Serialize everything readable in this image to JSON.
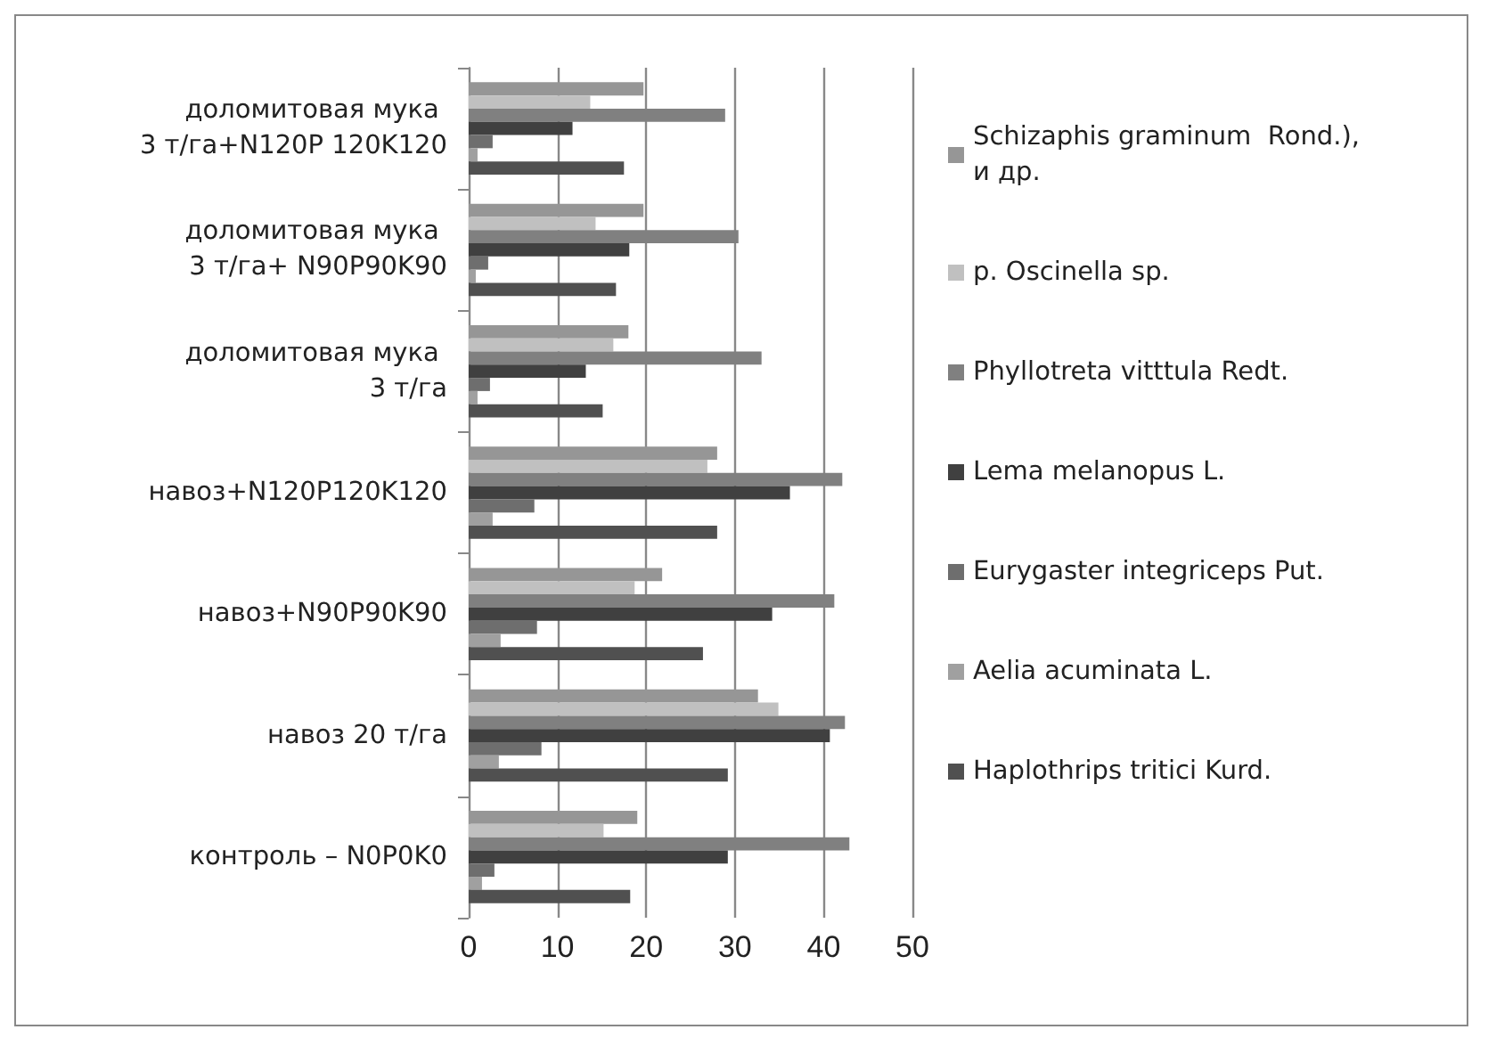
{
  "chart_data": {
    "type": "bar",
    "orientation": "horizontal",
    "categories": [
      "доломитовая мука 3 т/га+N120P 120K120",
      "доломитовая мука 3 т/га+ N90P90K90",
      "доломитовая мука 3 т/га",
      "навоз+N120P120K120",
      "навоз+N90P90K90",
      "навоз 20 т/га",
      "контроль – N0P0K0"
    ],
    "series": [
      {
        "name": "Schizaphis graminum  Rond.), и др.",
        "color": "#969696",
        "values": [
          19.7,
          19.7,
          18.0,
          28.0,
          21.8,
          32.6,
          19.0
        ]
      },
      {
        "name": "p. Oscinella sp.",
        "color": "#c0c0c0",
        "values": [
          13.7,
          14.3,
          16.3,
          26.9,
          18.7,
          34.9,
          15.2
        ]
      },
      {
        "name": "Phyllotreta vitttula Redt.",
        "color": "#808080",
        "values": [
          28.9,
          30.4,
          33.0,
          42.1,
          41.2,
          42.4,
          42.9
        ]
      },
      {
        "name": "Lema melanopus L.",
        "color": "#404040",
        "values": [
          11.7,
          18.1,
          13.2,
          36.2,
          34.2,
          40.7,
          29.2
        ]
      },
      {
        "name": "Eurygaster integriceps Put.",
        "color": "#6e6e6e",
        "values": [
          2.7,
          2.2,
          2.4,
          7.4,
          7.7,
          8.2,
          2.9
        ]
      },
      {
        "name": "Aelia acuminata L.",
        "color": "#a0a0a0",
        "values": [
          1.0,
          0.8,
          1.0,
          2.7,
          3.6,
          3.4,
          1.5
        ]
      },
      {
        "name": "Haplothrips tritici Kurd.",
        "color": "#505050",
        "values": [
          17.5,
          16.6,
          15.1,
          28.0,
          26.4,
          29.2,
          18.2
        ]
      }
    ],
    "xlim": [
      0,
      50
    ],
    "xticks": [
      0,
      10,
      20,
      30,
      40,
      50
    ],
    "grid": "x",
    "legend": "right"
  }
}
